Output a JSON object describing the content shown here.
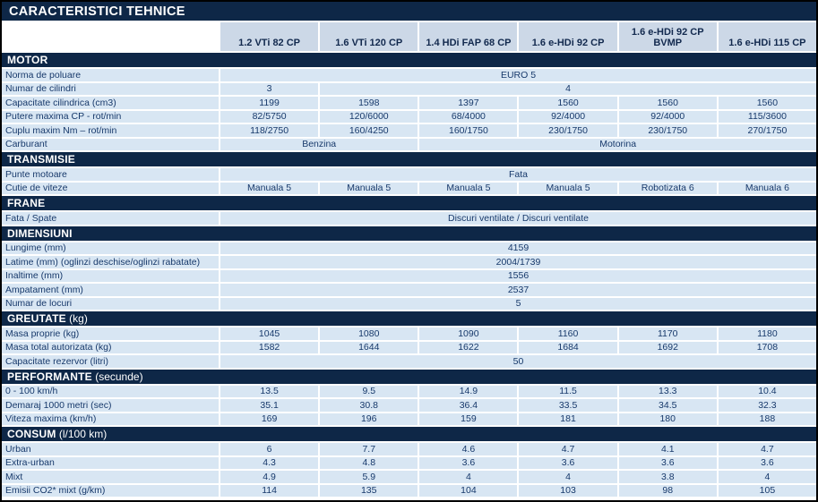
{
  "page": {
    "title": "CARACTERISTICI TEHNICE"
  },
  "columns": [
    "1.2 VTi 82 CP",
    "1.6 VTi 120 CP",
    "1.4 HDi FAP 68 CP",
    "1.6 e-HDi 92 CP",
    "1.6 e-HDi 92 CP BVMP",
    "1.6 e-HDi 115 CP"
  ],
  "colors": {
    "navy": "#0e2747",
    "header_cell": "#ccd8e7",
    "data_cell": "#d8e6f3",
    "text": "#17396b",
    "gap": "#ffffff",
    "border": "#000000"
  },
  "sections": [
    {
      "title": "MOTOR",
      "suffix": "",
      "rows": [
        {
          "label": "Norma de poluare",
          "cells": [
            {
              "text": "EURO 5",
              "span": 6
            }
          ]
        },
        {
          "label": "Numar de cilindri",
          "cells": [
            {
              "text": "3",
              "span": 1
            },
            {
              "text": "4",
              "span": 5
            }
          ]
        },
        {
          "label": "Capacitate cilindrica (cm3)",
          "cells": [
            {
              "text": "1199",
              "span": 1
            },
            {
              "text": "1598",
              "span": 1
            },
            {
              "text": "1397",
              "span": 1
            },
            {
              "text": "1560",
              "span": 1
            },
            {
              "text": "1560",
              "span": 1
            },
            {
              "text": "1560",
              "span": 1
            }
          ]
        },
        {
          "label": "Putere maxima CP - rot/min",
          "cells": [
            {
              "text": "82/5750",
              "span": 1
            },
            {
              "text": "120/6000",
              "span": 1
            },
            {
              "text": "68/4000",
              "span": 1
            },
            {
              "text": "92/4000",
              "span": 1
            },
            {
              "text": "92/4000",
              "span": 1
            },
            {
              "text": "115/3600",
              "span": 1
            }
          ]
        },
        {
          "label": "Cuplu maxim Nm – rot/min",
          "cells": [
            {
              "text": "118/2750",
              "span": 1
            },
            {
              "text": "160/4250",
              "span": 1
            },
            {
              "text": "160/1750",
              "span": 1
            },
            {
              "text": "230/1750",
              "span": 1
            },
            {
              "text": "230/1750",
              "span": 1
            },
            {
              "text": "270/1750",
              "span": 1
            }
          ]
        },
        {
          "label": "Carburant",
          "cells": [
            {
              "text": "Benzina",
              "span": 2
            },
            {
              "text": "Motorina",
              "span": 4
            }
          ]
        }
      ]
    },
    {
      "title": "TRANSMISIE",
      "suffix": "",
      "rows": [
        {
          "label": "Punte motoare",
          "cells": [
            {
              "text": "Fata",
              "span": 6
            }
          ]
        },
        {
          "label": "Cutie de viteze",
          "cells": [
            {
              "text": "Manuala 5",
              "span": 1
            },
            {
              "text": "Manuala 5",
              "span": 1
            },
            {
              "text": "Manuala 5",
              "span": 1
            },
            {
              "text": "Manuala 5",
              "span": 1
            },
            {
              "text": "Robotizata 6",
              "span": 1
            },
            {
              "text": "Manuala 6",
              "span": 1
            }
          ]
        }
      ]
    },
    {
      "title": "FRANE",
      "suffix": "",
      "rows": [
        {
          "label": "Fata / Spate",
          "cells": [
            {
              "text": "Discuri ventilate / Discuri ventilate",
              "span": 6
            }
          ]
        }
      ]
    },
    {
      "title": "DIMENSIUNI",
      "suffix": "",
      "rows": [
        {
          "label": "Lungime (mm)",
          "cells": [
            {
              "text": "4159",
              "span": 6
            }
          ]
        },
        {
          "label": "Latime (mm) (oglinzi deschise/oglinzi rabatate)",
          "cells": [
            {
              "text": "2004/1739",
              "span": 6
            }
          ]
        },
        {
          "label": "Inaltime (mm)",
          "cells": [
            {
              "text": "1556",
              "span": 6
            }
          ]
        },
        {
          "label": "Ampatament (mm)",
          "cells": [
            {
              "text": "2537",
              "span": 6
            }
          ]
        },
        {
          "label": "Numar de locuri",
          "cells": [
            {
              "text": "5",
              "span": 6
            }
          ]
        }
      ]
    },
    {
      "title": "GREUTATE",
      "suffix": " (kg)",
      "rows": [
        {
          "label": "Masa proprie (kg)",
          "cells": [
            {
              "text": "1045",
              "span": 1
            },
            {
              "text": "1080",
              "span": 1
            },
            {
              "text": "1090",
              "span": 1
            },
            {
              "text": "1160",
              "span": 1
            },
            {
              "text": "1170",
              "span": 1
            },
            {
              "text": "1180",
              "span": 1
            }
          ]
        },
        {
          "label": "Masa total autorizata (kg)",
          "cells": [
            {
              "text": "1582",
              "span": 1
            },
            {
              "text": "1644",
              "span": 1
            },
            {
              "text": "1622",
              "span": 1
            },
            {
              "text": "1684",
              "span": 1
            },
            {
              "text": "1692",
              "span": 1
            },
            {
              "text": "1708",
              "span": 1
            }
          ]
        },
        {
          "label": "Capacitate rezervor (litri)",
          "cells": [
            {
              "text": "50",
              "span": 6
            }
          ]
        }
      ]
    },
    {
      "title": "PERFORMANTE",
      "suffix": " (secunde)",
      "rows": [
        {
          "label": "0 - 100 km/h",
          "cells": [
            {
              "text": "13.5",
              "span": 1
            },
            {
              "text": "9.5",
              "span": 1
            },
            {
              "text": "14.9",
              "span": 1
            },
            {
              "text": "11.5",
              "span": 1
            },
            {
              "text": "13.3",
              "span": 1
            },
            {
              "text": "10.4",
              "span": 1
            }
          ]
        },
        {
          "label": "Demaraj 1000 metri (sec)",
          "cells": [
            {
              "text": "35.1",
              "span": 1
            },
            {
              "text": "30.8",
              "span": 1
            },
            {
              "text": "36.4",
              "span": 1
            },
            {
              "text": "33.5",
              "span": 1
            },
            {
              "text": "34.5",
              "span": 1
            },
            {
              "text": "32.3",
              "span": 1
            }
          ]
        },
        {
          "label": "Viteza maxima (km/h)",
          "cells": [
            {
              "text": "169",
              "span": 1
            },
            {
              "text": "196",
              "span": 1
            },
            {
              "text": "159",
              "span": 1
            },
            {
              "text": "181",
              "span": 1
            },
            {
              "text": "180",
              "span": 1
            },
            {
              "text": "188",
              "span": 1
            }
          ]
        }
      ]
    },
    {
      "title": "CONSUM",
      "suffix": " (l/100 km)",
      "rows": [
        {
          "label": "Urban",
          "cells": [
            {
              "text": "6",
              "span": 1
            },
            {
              "text": "7.7",
              "span": 1
            },
            {
              "text": "4.6",
              "span": 1
            },
            {
              "text": "4.7",
              "span": 1
            },
            {
              "text": "4.1",
              "span": 1
            },
            {
              "text": "4.7",
              "span": 1
            }
          ]
        },
        {
          "label": "Extra-urban",
          "cells": [
            {
              "text": "4.3",
              "span": 1
            },
            {
              "text": "4.8",
              "span": 1
            },
            {
              "text": "3.6",
              "span": 1
            },
            {
              "text": "3.6",
              "span": 1
            },
            {
              "text": "3.6",
              "span": 1
            },
            {
              "text": "3.6",
              "span": 1
            }
          ]
        },
        {
          "label": "Mixt",
          "cells": [
            {
              "text": "4.9",
              "span": 1
            },
            {
              "text": "5.9",
              "span": 1
            },
            {
              "text": "4",
              "span": 1
            },
            {
              "text": "4",
              "span": 1
            },
            {
              "text": "3.8",
              "span": 1
            },
            {
              "text": "4",
              "span": 1
            }
          ]
        },
        {
          "label": "Emisii CO2* mixt (g/km)",
          "cells": [
            {
              "text": "114",
              "span": 1
            },
            {
              "text": "135",
              "span": 1
            },
            {
              "text": "104",
              "span": 1
            },
            {
              "text": "103",
              "span": 1
            },
            {
              "text": "98",
              "span": 1
            },
            {
              "text": "105",
              "span": 1
            }
          ]
        }
      ]
    }
  ]
}
